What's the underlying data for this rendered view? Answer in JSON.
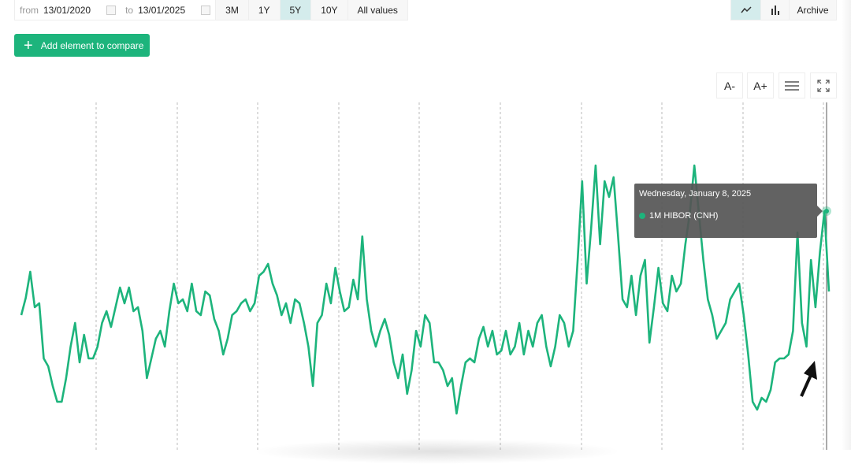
{
  "toolbar": {
    "from_label": "from",
    "from_value": "13/01/2020",
    "to_label": "to",
    "to_value": "13/01/2025",
    "ranges": [
      "3M",
      "1Y",
      "5Y",
      "10Y",
      "All values"
    ],
    "active_range": "5Y",
    "archive_label": "Archive",
    "line_icon": "line-chart-icon",
    "bar_icon": "bar-chart-icon"
  },
  "add_compare_label": "Add element to compare",
  "chart_controls": {
    "font_smaller": "A-",
    "font_larger": "A+",
    "menu_icon": "hamburger-icon",
    "fullscreen_icon": "expand-icon"
  },
  "tooltip": {
    "date": "Wednesday, January 8, 2025",
    "series": "1M HIBOR (CNH)"
  },
  "colors": {
    "accent": "#1db47c",
    "line": "#1db47c",
    "active_tab": "#d4ecec",
    "tooltip_bg": "#555555"
  },
  "chart_data": {
    "type": "line",
    "title": "",
    "xlabel": "",
    "ylabel": "",
    "x_range": [
      "2020-01-13",
      "2025-01-08"
    ],
    "grid": "vertical dashed",
    "annotation": "arrow pointing to late-2024 low",
    "series": [
      {
        "name": "1M HIBOR (CNH)",
        "values": [
          160,
          182,
          215,
          170,
          175,
          105,
          95,
          70,
          50,
          50,
          80,
          120,
          150,
          100,
          135,
          105,
          105,
          120,
          150,
          165,
          145,
          170,
          195,
          175,
          195,
          165,
          170,
          140,
          80,
          105,
          130,
          140,
          120,
          165,
          200,
          175,
          180,
          165,
          200,
          165,
          160,
          190,
          185,
          155,
          140,
          110,
          130,
          160,
          165,
          175,
          180,
          165,
          175,
          210,
          215,
          225,
          200,
          185,
          160,
          175,
          150,
          180,
          175,
          150,
          120,
          70,
          150,
          160,
          200,
          175,
          220,
          190,
          165,
          170,
          205,
          180,
          260,
          180,
          140,
          120,
          140,
          155,
          135,
          100,
          80,
          110,
          60,
          90,
          140,
          120,
          160,
          150,
          100,
          100,
          90,
          70,
          80,
          35,
          70,
          100,
          105,
          100,
          130,
          145,
          120,
          140,
          110,
          115,
          140,
          110,
          120,
          150,
          110,
          140,
          120,
          150,
          160,
          120,
          95,
          120,
          160,
          150,
          120,
          140,
          230,
          330,
          200,
          270,
          350,
          250,
          330,
          310,
          335,
          260,
          180,
          170,
          210,
          160,
          210,
          230,
          125,
          170,
          220,
          175,
          165,
          210,
          190,
          200,
          250,
          290,
          350,
          290,
          230,
          180,
          160,
          130,
          140,
          150,
          180,
          190,
          200,
          160,
          110,
          50,
          40,
          55,
          50,
          65,
          100,
          105,
          105,
          110,
          140,
          265,
          150,
          120,
          230,
          170,
          240,
          292,
          190
        ]
      }
    ]
  }
}
